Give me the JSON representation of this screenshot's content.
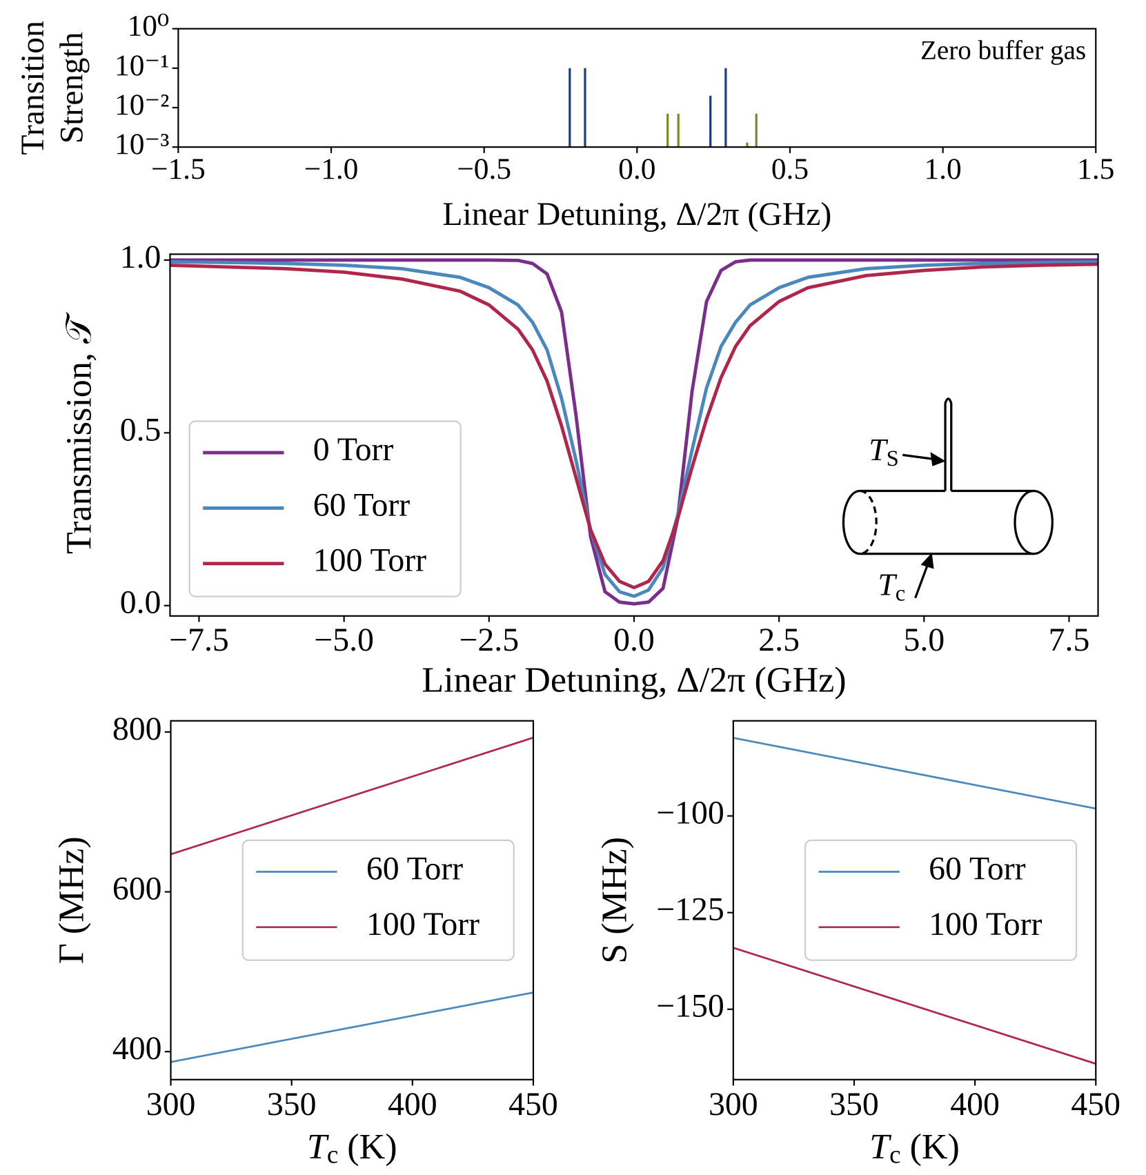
{
  "chart_data": [
    {
      "type": "stem",
      "yscale": "log",
      "ylabel": [
        "Transition",
        "Strength"
      ],
      "xlabel": "Linear Detuning, Δ/2π (GHz)",
      "annotation": "Zero buffer gas",
      "xlim": [
        -1.5,
        1.5
      ],
      "xticks": [
        {
          "value": -1.5,
          "label": "−1.5"
        },
        {
          "value": -1.0,
          "label": "−1.0"
        },
        {
          "value": -0.5,
          "label": "−0.5"
        },
        {
          "value": 0,
          "label": "0.0"
        },
        0.5,
        {
          "value": 1.0,
          "label": "1.0"
        },
        1.5
      ],
      "ylim": [
        0.001,
        1
      ],
      "yticks": [
        {
          "value": 0.001,
          "label": "10⁻³"
        },
        {
          "value": 0.01,
          "label": "10⁻²"
        },
        {
          "value": 0.1,
          "label": "10⁻¹"
        },
        {
          "value": 1,
          "label": "10⁰"
        }
      ],
      "series": [
        {
          "color": "#1f3f7a",
          "x": [
            -0.22,
            -0.17,
            0.24,
            0.29
          ],
          "values": [
            0.1,
            0.1,
            0.02,
            0.1
          ]
        },
        {
          "color": "#7a8a2a",
          "x": [
            0.1,
            0.135,
            0.36,
            0.39
          ],
          "values": [
            0.007,
            0.007,
            0.0013,
            0.007
          ]
        }
      ]
    },
    {
      "type": "line",
      "ylabel": "Transmission, 𝒯",
      "xlabel": "Linear Detuning, Δ/2π (GHz)",
      "xlim": [
        -8,
        8
      ],
      "xticks": [
        {
          "value": -7.5,
          "label": "−7.5"
        },
        {
          "value": -5,
          "label": "−5.0"
        },
        {
          "value": -2.5,
          "label": "−2.5"
        },
        {
          "value": 0,
          "label": "0.0"
        },
        2.5,
        {
          "value": 5,
          "label": "5.0"
        },
        7.5
      ],
      "ylim": [
        -0.03,
        1.017
      ],
      "yticks": [
        {
          "value": 0,
          "label": "0.0"
        },
        0.5,
        {
          "value": 1,
          "label": "1.0"
        }
      ],
      "legend": "lower left",
      "annotations": [
        [
          "T",
          "S"
        ],
        [
          "T",
          "c"
        ]
      ],
      "x": [
        -8,
        -7,
        -6,
        -5,
        -4,
        -3,
        -2.5,
        -2,
        -1.75,
        -1.5,
        -1.25,
        -1,
        -0.75,
        -0.5,
        -0.25,
        0,
        0.25,
        0.5,
        0.75,
        1,
        1.25,
        1.5,
        1.75,
        2,
        2.5,
        3,
        4,
        5,
        6,
        7,
        8
      ],
      "series": [
        {
          "name": "0 Torr",
          "color": "#7b2d8b",
          "values": [
            1,
            1,
            1,
            1,
            1,
            1,
            1,
            0.999,
            0.99,
            0.96,
            0.85,
            0.55,
            0.2,
            0.04,
            0.01,
            0.005,
            0.01,
            0.05,
            0.25,
            0.62,
            0.88,
            0.97,
            0.995,
            1,
            1,
            1,
            1,
            1,
            1,
            1,
            1
          ]
        },
        {
          "name": "60 Torr",
          "color": "#4a87bd",
          "values": [
            0.995,
            0.993,
            0.99,
            0.985,
            0.975,
            0.95,
            0.92,
            0.87,
            0.82,
            0.74,
            0.6,
            0.42,
            0.22,
            0.09,
            0.04,
            0.027,
            0.045,
            0.11,
            0.26,
            0.45,
            0.63,
            0.75,
            0.82,
            0.87,
            0.92,
            0.95,
            0.975,
            0.985,
            0.99,
            0.993,
            0.995
          ]
        },
        {
          "name": "100 Torr",
          "color": "#b0264b",
          "values": [
            0.985,
            0.98,
            0.975,
            0.965,
            0.945,
            0.91,
            0.87,
            0.8,
            0.74,
            0.65,
            0.52,
            0.37,
            0.22,
            0.12,
            0.07,
            0.052,
            0.07,
            0.13,
            0.25,
            0.4,
            0.54,
            0.66,
            0.75,
            0.81,
            0.88,
            0.92,
            0.955,
            0.97,
            0.98,
            0.985,
            0.988
          ]
        }
      ]
    },
    {
      "type": "line",
      "ylabel": "Γ (MHz)",
      "xlabel": [
        "T",
        "c",
        " (K)"
      ],
      "xlim": [
        300,
        450
      ],
      "xticks": [
        300,
        350,
        400,
        450
      ],
      "ylim": [
        365,
        814
      ],
      "yticks": [
        400,
        600,
        800
      ],
      "legend": "center right",
      "x": [
        300,
        450
      ],
      "series": [
        {
          "name": "60 Torr",
          "color": "#4a87bd",
          "values": [
            387,
            474
          ]
        },
        {
          "name": "100 Torr",
          "color": "#b0264b",
          "values": [
            647,
            793
          ]
        }
      ]
    },
    {
      "type": "line",
      "ylabel": "S (MHz)",
      "xlabel": [
        "T",
        "c",
        " (K)"
      ],
      "xlim": [
        300,
        450
      ],
      "xticks": [
        300,
        350,
        400,
        450
      ],
      "ylim": [
        -168.2,
        -75.4
      ],
      "yticks": [
        {
          "value": -150,
          "label": "−150"
        },
        {
          "value": -125,
          "label": "−125"
        },
        {
          "value": -100,
          "label": "−100"
        }
      ],
      "legend": "center right",
      "x": [
        300,
        450
      ],
      "series": [
        {
          "name": "60 Torr",
          "color": "#4a87bd",
          "values": [
            -79.8,
            -98.1
          ]
        },
        {
          "name": "100 Torr",
          "color": "#b0264b",
          "values": [
            -134.1,
            -164.1
          ]
        }
      ]
    }
  ]
}
